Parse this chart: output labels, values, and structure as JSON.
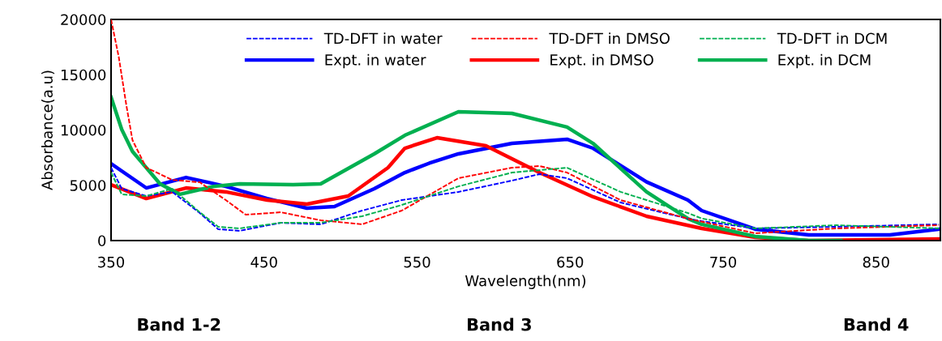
{
  "chart_data": {
    "type": "line",
    "xlabel": "Wavelength(nm)",
    "ylabel": "Absorbance(a.u)",
    "xlim": [
      350,
      892
    ],
    "xticks": [
      350,
      450,
      550,
      650,
      750,
      850
    ],
    "ylim": [
      0,
      20000
    ],
    "yticks": [
      0,
      5000,
      10000,
      15000,
      20000
    ],
    "grid": false,
    "legend": "top",
    "marker": "none",
    "annotations": [
      "Band 1-2",
      "Band 3",
      "Band 4"
    ],
    "series": [
      {
        "name": "TD-DFT in water",
        "color": "#0000ff",
        "line_style": "dashed",
        "x": [
          350,
          357,
          373,
          390,
          408,
          420,
          434,
          461,
          487,
          514,
          540,
          577,
          612,
          630,
          648,
          683,
          727,
          736,
          771,
          824,
          891
        ],
        "values": [
          6590,
          4690,
          4030,
          4400,
          2490,
          1030,
          880,
          1610,
          1470,
          2710,
          3660,
          4400,
          5420,
          6010,
          5640,
          3440,
          1980,
          1760,
          1100,
          1250,
          1470
        ]
      },
      {
        "name": "TD-DFT in DMSO",
        "color": "#ff0000",
        "line_style": "dashed",
        "x": [
          350,
          355,
          360,
          364,
          373,
          390,
          408,
          425,
          438,
          461,
          487,
          514,
          540,
          577,
          612,
          630,
          648,
          683,
          727,
          771,
          824,
          891
        ],
        "values": [
          20000,
          16630,
          12230,
          9080,
          6590,
          5490,
          5270,
          3660,
          2340,
          2560,
          1830,
          1470,
          2710,
          5640,
          6590,
          6740,
          6150,
          3660,
          1980,
          660,
          1100,
          1390
        ]
      },
      {
        "name": "TD-DFT in DCM",
        "color": "#00b050",
        "line_style": "dashed",
        "x": [
          350,
          357,
          373,
          390,
          408,
          420,
          434,
          461,
          487,
          514,
          540,
          577,
          612,
          648,
          683,
          727,
          736,
          771,
          824,
          891
        ],
        "values": [
          6150,
          4180,
          4030,
          4690,
          2560,
          1250,
          1100,
          1610,
          1610,
          2200,
          3220,
          4900,
          6150,
          6590,
          4400,
          2490,
          2000,
          1100,
          1390,
          1100
        ]
      },
      {
        "name": "Expt. in water",
        "color": "#0000ff",
        "line_style": "solid",
        "x": [
          350,
          373,
          399,
          425,
          452,
          478,
          496,
          522,
          542,
          558,
          577,
          612,
          648,
          665,
          700,
          727,
          736,
          771,
          806,
          859,
          891
        ],
        "values": [
          6960,
          4760,
          5710,
          4900,
          3800,
          2930,
          3080,
          4690,
          6150,
          7000,
          7840,
          8790,
          9160,
          8350,
          5300,
          3660,
          2710,
          1030,
          510,
          510,
          1030
        ]
      },
      {
        "name": "Expt. in DMSO",
        "color": "#ff0000",
        "line_style": "solid",
        "x": [
          350,
          373,
          399,
          425,
          452,
          478,
          505,
          531,
          542,
          563,
          595,
          630,
          665,
          700,
          736,
          771,
          806,
          891
        ],
        "values": [
          5050,
          3800,
          4760,
          4400,
          3660,
          3300,
          4030,
          6590,
          8350,
          9300,
          8570,
          6150,
          3960,
          2200,
          1100,
          290,
          0,
          150
        ]
      },
      {
        "name": "Expt. in DCM",
        "color": "#00b050",
        "line_style": "solid",
        "x": [
          350,
          357,
          364,
          382,
          395,
          417,
          434,
          469,
          487,
          522,
          542,
          577,
          612,
          648,
          665,
          700,
          727,
          736,
          771,
          806,
          827
        ],
        "values": [
          12970,
          10040,
          8060,
          5130,
          4180,
          4900,
          5130,
          5050,
          5130,
          7840,
          9520,
          11650,
          11500,
          10260,
          8790,
          4400,
          1980,
          1470,
          370,
          0,
          0
        ]
      }
    ]
  }
}
